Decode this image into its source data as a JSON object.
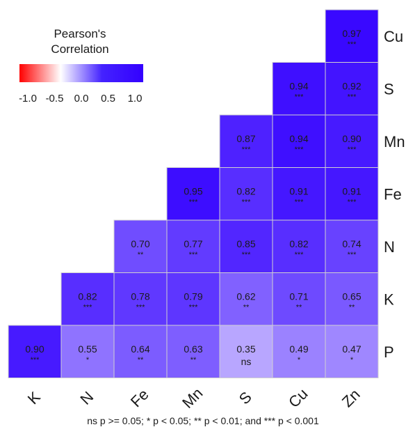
{
  "legend": {
    "title_line1": "Pearson's",
    "title_line2": "Correlation",
    "ticks": [
      "-1.0",
      "-0.5",
      "0.0",
      "0.5",
      "1.0"
    ],
    "colors": {
      "low": "#ff0000",
      "mid": "#ffffff",
      "high": "#3300ff"
    }
  },
  "footnote": "ns p >= 0.05; * p < 0.05; ** p < 0.01; and *** p < 0.001",
  "chart_data": {
    "type": "heatmap",
    "title": "",
    "x_labels": [
      "K",
      "N",
      "Fe",
      "Mn",
      "S",
      "Cu",
      "Zn"
    ],
    "y_labels_top_to_bottom": [
      "Cu",
      "S",
      "Mn",
      "Fe",
      "N",
      "K",
      "P"
    ],
    "value_range": [
      -1.0,
      1.0
    ],
    "cells": [
      {
        "row": "Cu",
        "col": "Zn",
        "value": 0.97,
        "sig": "***"
      },
      {
        "row": "S",
        "col": "Cu",
        "value": 0.94,
        "sig": "***"
      },
      {
        "row": "S",
        "col": "Zn",
        "value": 0.92,
        "sig": "***"
      },
      {
        "row": "Mn",
        "col": "S",
        "value": 0.87,
        "sig": "***"
      },
      {
        "row": "Mn",
        "col": "Cu",
        "value": 0.94,
        "sig": "***"
      },
      {
        "row": "Mn",
        "col": "Zn",
        "value": 0.9,
        "sig": "***"
      },
      {
        "row": "Fe",
        "col": "Mn",
        "value": 0.95,
        "sig": "***"
      },
      {
        "row": "Fe",
        "col": "S",
        "value": 0.82,
        "sig": "***"
      },
      {
        "row": "Fe",
        "col": "Cu",
        "value": 0.91,
        "sig": "***"
      },
      {
        "row": "Fe",
        "col": "Zn",
        "value": 0.91,
        "sig": "***"
      },
      {
        "row": "N",
        "col": "Fe",
        "value": 0.7,
        "sig": "**"
      },
      {
        "row": "N",
        "col": "Mn",
        "value": 0.77,
        "sig": "***"
      },
      {
        "row": "N",
        "col": "S",
        "value": 0.85,
        "sig": "***"
      },
      {
        "row": "N",
        "col": "Cu",
        "value": 0.82,
        "sig": "***"
      },
      {
        "row": "N",
        "col": "Zn",
        "value": 0.74,
        "sig": "***"
      },
      {
        "row": "K",
        "col": "N",
        "value": 0.82,
        "sig": "***"
      },
      {
        "row": "K",
        "col": "Fe",
        "value": 0.78,
        "sig": "***"
      },
      {
        "row": "K",
        "col": "Mn",
        "value": 0.79,
        "sig": "***"
      },
      {
        "row": "K",
        "col": "S",
        "value": 0.62,
        "sig": "**"
      },
      {
        "row": "K",
        "col": "Cu",
        "value": 0.71,
        "sig": "**"
      },
      {
        "row": "K",
        "col": "Zn",
        "value": 0.65,
        "sig": "**"
      },
      {
        "row": "P",
        "col": "K",
        "value": 0.9,
        "sig": "***"
      },
      {
        "row": "P",
        "col": "N",
        "value": 0.55,
        "sig": "*"
      },
      {
        "row": "P",
        "col": "Fe",
        "value": 0.64,
        "sig": "**"
      },
      {
        "row": "P",
        "col": "Mn",
        "value": 0.63,
        "sig": "**"
      },
      {
        "row": "P",
        "col": "S",
        "value": 0.35,
        "sig": "ns"
      },
      {
        "row": "P",
        "col": "Cu",
        "value": 0.49,
        "sig": "*"
      },
      {
        "row": "P",
        "col": "Zn",
        "value": 0.47,
        "sig": "*"
      }
    ]
  }
}
